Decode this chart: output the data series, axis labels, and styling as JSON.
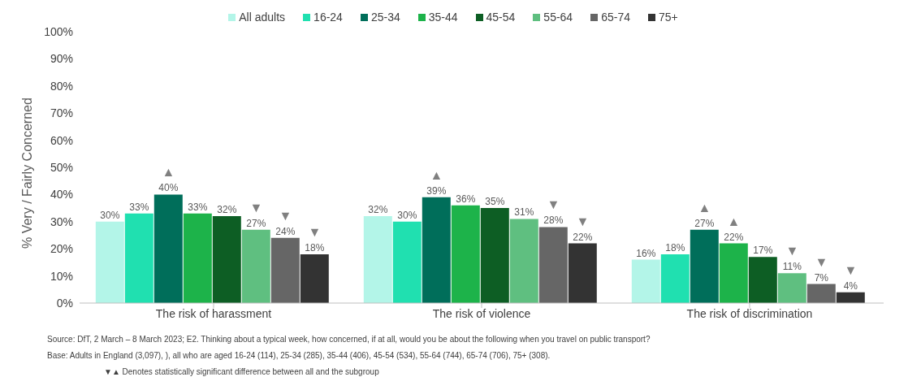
{
  "chart_data": {
    "type": "bar",
    "ylabel": "% Very / Fairly Concerned",
    "categories": [
      "The risk of harassment",
      "The risk of violence",
      "The risk of discrimination"
    ],
    "series": [
      {
        "name": "All adults",
        "color": "#b3f5e8",
        "values": [
          30,
          32,
          16
        ],
        "value_labels": [
          "30%",
          "32%",
          "16%"
        ]
      },
      {
        "name": "16-24",
        "color": "#20e0b0",
        "values": [
          33,
          30,
          18
        ],
        "value_labels": [
          "33%",
          "30%",
          "18%"
        ]
      },
      {
        "name": "25-34",
        "color": "#006e5a",
        "values": [
          40,
          39,
          27
        ],
        "value_labels": [
          "▲\n40%",
          "▲\n39%",
          "▲\n27%"
        ]
      },
      {
        "name": "35-44",
        "color": "#1db34a",
        "values": [
          33,
          36,
          22
        ],
        "value_labels": [
          "33%",
          "36%",
          "▲\n22%"
        ]
      },
      {
        "name": "45-54",
        "color": "#0d5e24",
        "values": [
          32,
          35,
          17
        ],
        "value_labels": [
          "32%",
          "35%",
          "17%"
        ]
      },
      {
        "name": "55-64",
        "color": "#5fbf80",
        "values": [
          27,
          31,
          11
        ],
        "value_labels": [
          "▼\n27%",
          "31%",
          "▼\n11%"
        ]
      },
      {
        "name": "65-74",
        "color": "#666666",
        "values": [
          24,
          28,
          7
        ],
        "value_labels": [
          "▼\n24%",
          "▼\n28%",
          "▼\n7%"
        ]
      },
      {
        "name": "75+",
        "color": "#333333",
        "values": [
          18,
          22,
          4
        ],
        "value_labels": [
          "▼\n18%",
          "▼\n22%",
          "▼\n4%"
        ]
      }
    ],
    "ylim": [
      0,
      100
    ],
    "yticks": [
      {
        "value": 0,
        "label": "0%"
      },
      {
        "value": 10,
        "label": "10%"
      },
      {
        "value": 20,
        "label": "20%"
      },
      {
        "value": 30,
        "label": "30%"
      },
      {
        "value": 40,
        "label": "40%"
      },
      {
        "value": 50,
        "label": "50%"
      },
      {
        "value": 60,
        "label": "60%"
      },
      {
        "value": 70,
        "label": "70%"
      },
      {
        "value": 80,
        "label": "80%"
      },
      {
        "value": 90,
        "label": "90%"
      },
      {
        "value": 100,
        "label": "100%"
      }
    ],
    "grid": false,
    "legend": "top",
    "annotations": [
      "Source: DfT, 2 March – 8 March 2023; E2. Thinking about a typical week, how concerned, if at all, would you be about the following when you travel on public transport?",
      "Base: Adults in England (3,097), ), all who are aged 16-24 (114), 25-34 (285), 35-44 (406), 45-54 (534), 55-64 (744), 65-74 (706), 75+ (308).",
      "▼▲ Denotes statistically significant difference between all and the subgroup"
    ]
  }
}
